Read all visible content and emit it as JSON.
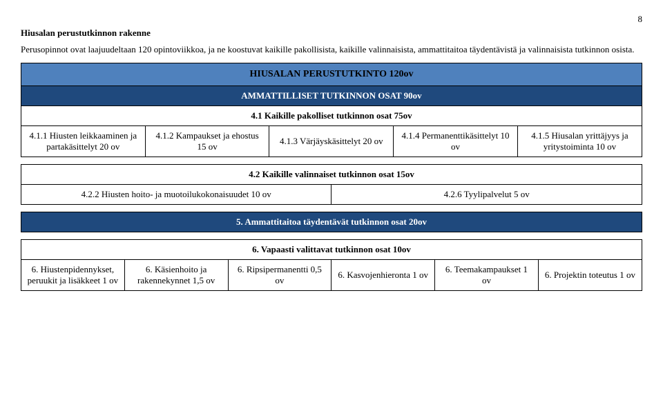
{
  "pageNumber": "8",
  "heading": "Hiusalan perustutkinnon rakenne",
  "intro": "Perusopinnot ovat laajuudeltaan 120 opintoviikkoa, ja ne koostuvat kaikille pakollisista, kaikille valinnaisista, ammattitaitoa täydentävistä ja valinnaisista tutkinnon osista.",
  "titleBar": "HIUSALAN PERUSTUTKINTO 120ov",
  "section1Header": "AMMATTILLISET TUTKINNON OSAT 90ov",
  "row41": "4.1 Kaikille pakolliset tutkinnon osat 75ov",
  "cells41": [
    "4.1.1 Hiusten leikkaaminen ja partakäsittelyt 20 ov",
    "4.1.2 Kampaukset ja ehostus 15 ov",
    "4.1.3 Värjäyskäsittelyt 20 ov",
    "4.1.4 Permanenttikäsittelyt 10 ov",
    "4.1.5 Hiusalan yrittäjyys ja yritystoiminta 10 ov"
  ],
  "row42": "4.2 Kaikille valinnaiset tutkinnon osat 15ov",
  "cells42": [
    "4.2.2 Hiusten hoito- ja muotoilukokonaisuudet 10 ov",
    "4.2.6 Tyylipalvelut 5 ov"
  ],
  "row5": "5. Ammattitaitoa täydentävät tutkinnon osat 20ov",
  "row6": "6. Vapaasti valittavat tutkinnon osat 10ov",
  "cells6": [
    "6. Hiustenpidennykset, peruukit ja lisäkkeet 1   ov",
    "6. Käsienhoito ja rakennekynnet 1,5 ov",
    "6. Ripsipermanentti 0,5 ov",
    "6. Kasvojenhieronta 1 ov",
    "6. Teemakampaukset 1 ov",
    "6. Projektin toteutus 1 ov"
  ]
}
